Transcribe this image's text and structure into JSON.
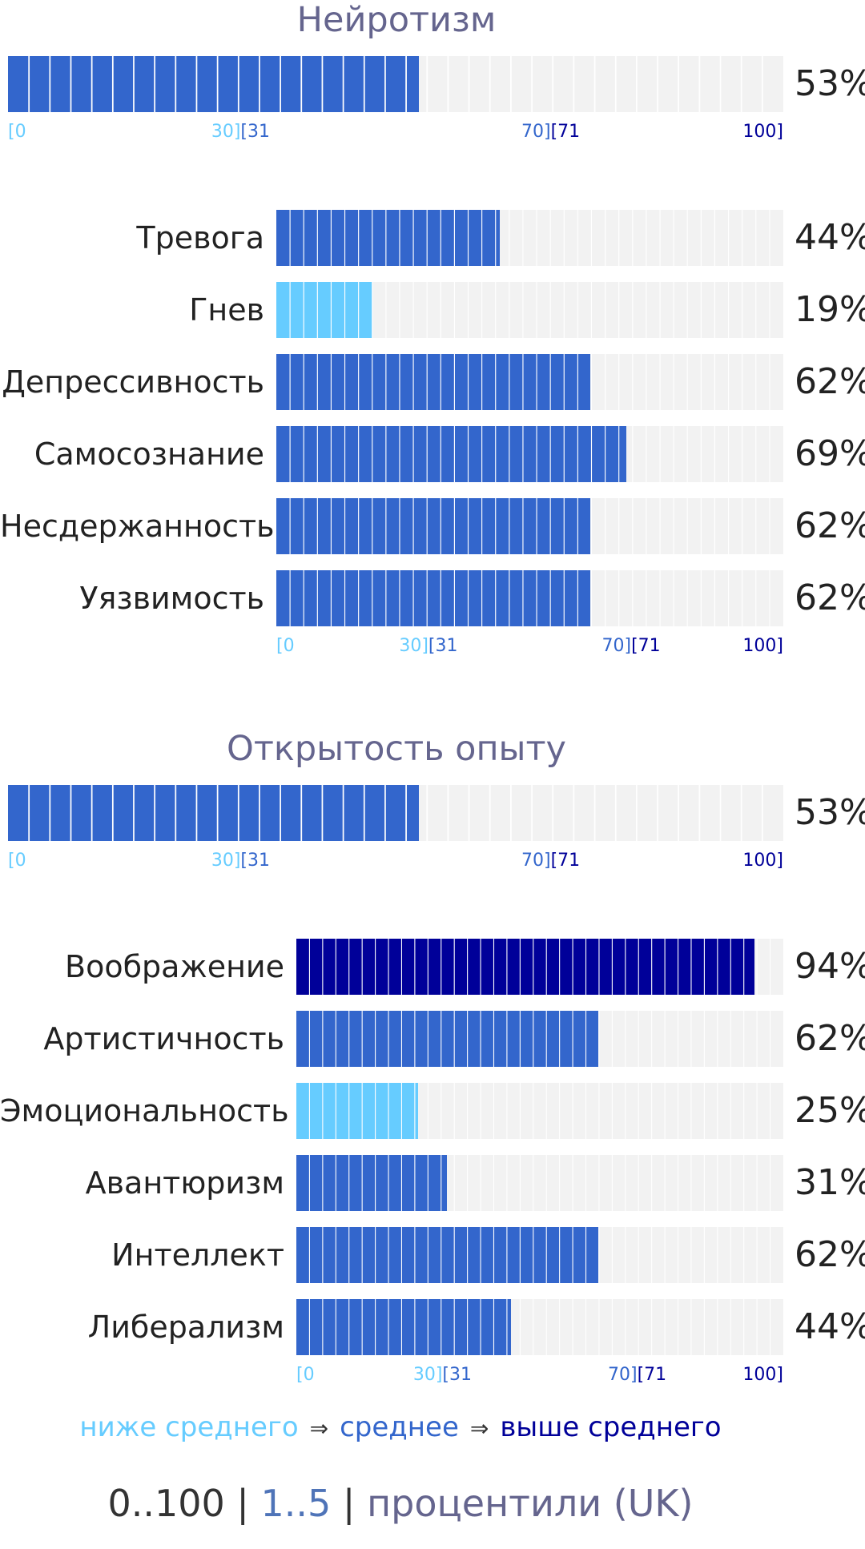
{
  "colors": {
    "below": "#66ccff",
    "average": "#3366cc",
    "above": "#000099",
    "track": "#f2f2f2",
    "title": "#65658e"
  },
  "scale": {
    "t0": "[0",
    "t30": "30]",
    "t31": "[31",
    "t70": "70]",
    "t71": "[71",
    "t100": "100]"
  },
  "sections": [
    {
      "title": "Нейротизм",
      "main_value": 53,
      "main_pct": "53%",
      "facets": [
        {
          "label": "Тревога",
          "value": 44,
          "pct": "44%",
          "level": "average"
        },
        {
          "label": "Гнев",
          "value": 19,
          "pct": "19%",
          "level": "below"
        },
        {
          "label": "Депрессивность",
          "value": 62,
          "pct": "62%",
          "level": "average"
        },
        {
          "label": "Самосознание",
          "value": 69,
          "pct": "69%",
          "level": "average"
        },
        {
          "label": "Несдержанность",
          "value": 62,
          "pct": "62%",
          "level": "average"
        },
        {
          "label": "Уязвимость",
          "value": 62,
          "pct": "62%",
          "level": "average"
        }
      ]
    },
    {
      "title": "Открытость опыту",
      "main_value": 53,
      "main_pct": "53%",
      "facets": [
        {
          "label": "Воображение",
          "value": 94,
          "pct": "94%",
          "level": "above"
        },
        {
          "label": "Артистичность",
          "value": 62,
          "pct": "62%",
          "level": "average"
        },
        {
          "label": "Эмоциональность",
          "value": 25,
          "pct": "25%",
          "level": "below"
        },
        {
          "label": "Авантюризм",
          "value": 31,
          "pct": "31%",
          "level": "average"
        },
        {
          "label": "Интеллект",
          "value": 62,
          "pct": "62%",
          "level": "average"
        },
        {
          "label": "Либерализм",
          "value": 44,
          "pct": "44%",
          "level": "average"
        }
      ]
    }
  ],
  "legend": {
    "below": "ниже среднего",
    "arrow": "⇒",
    "average": "среднее",
    "above": "выше среднего"
  },
  "footer": {
    "range": "0..100",
    "sep": " | ",
    "scale5": "1..5",
    "percentiles": "процентили (UK)"
  }
}
